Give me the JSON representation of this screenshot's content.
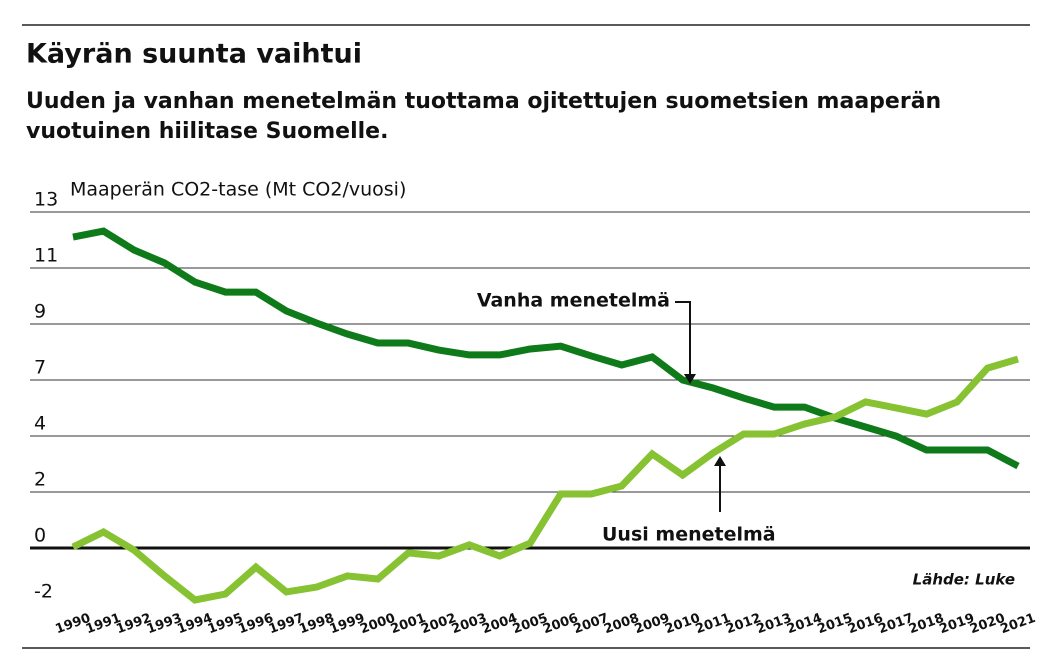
{
  "chart_data": {
    "type": "line",
    "title": "Käyrän suunta vaihtui",
    "subtitle": [
      "Uuden ja vanhan menetelmän tuottama ojitettujen suometsien maaperän",
      "vuotuinen hiilitase Suomelle."
    ],
    "y_label": "Maaperän CO2-tase (Mt CO2/vuosi)",
    "source": "Lähde: Luke",
    "x": [
      1990,
      1991,
      1992,
      1993,
      1994,
      1995,
      1996,
      1997,
      1998,
      1999,
      2000,
      2001,
      2002,
      2003,
      2004,
      2005,
      2006,
      2007,
      2008,
      2009,
      2010,
      2011,
      2012,
      2013,
      2014,
      2015,
      2016,
      2017,
      2018,
      2019,
      2020,
      2021
    ],
    "xlim": [
      1990,
      2021
    ],
    "ylim": [
      -2.1667,
      13
    ],
    "yticks": [
      {
        "value": -2.1667,
        "label": "-2"
      },
      0,
      {
        "value": 2.1667,
        "label": "2"
      },
      {
        "value": 4.3333,
        "label": "4"
      },
      {
        "value": 6.5,
        "label": "7"
      },
      {
        "value": 8.6667,
        "label": "9"
      },
      {
        "value": 10.8333,
        "label": "11"
      },
      13
    ],
    "grid": true,
    "series": [
      {
        "name": "Vanha menetelmä",
        "color": "#0f7a1a",
        "values": [
          12.03,
          12.26,
          11.53,
          11.03,
          10.29,
          9.9,
          9.9,
          9.17,
          8.7,
          8.28,
          7.93,
          7.93,
          7.66,
          7.47,
          7.47,
          7.7,
          7.81,
          7.43,
          7.08,
          7.39,
          6.5,
          6.19,
          5.8,
          5.45,
          5.45,
          5.03,
          4.68,
          4.33,
          3.79,
          3.79,
          3.79,
          3.17
        ]
      },
      {
        "name": "Uusi menetelmä",
        "color": "#86c232",
        "values": [
          0.04,
          0.62,
          -0.08,
          -1.08,
          -2.01,
          -1.78,
          -0.74,
          -1.7,
          -1.51,
          -1.08,
          -1.2,
          -0.19,
          -0.31,
          0.12,
          -0.31,
          0.19,
          2.09,
          2.09,
          2.4,
          3.64,
          2.82,
          3.68,
          4.41,
          4.41,
          4.8,
          5.07,
          5.65,
          5.42,
          5.18,
          5.65,
          6.96,
          7.31
        ]
      }
    ]
  }
}
